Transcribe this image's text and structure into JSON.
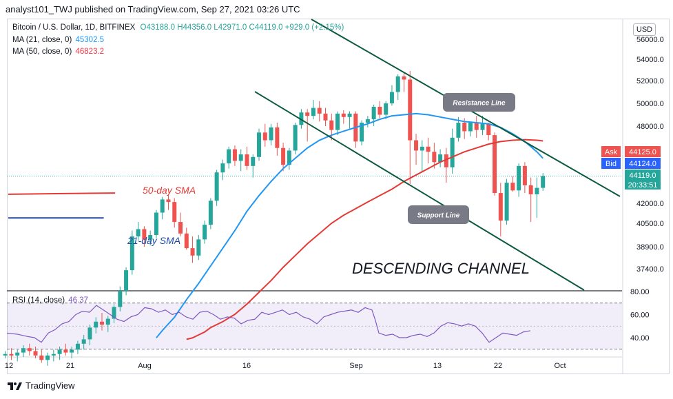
{
  "header": {
    "text": "analyst101_TWJ published on TradingView.com, Sep 27, 2021 03:26 UTC"
  },
  "legend": {
    "symbol": "Bitcoin / U.S. Dollar, 1D, BITFINEX",
    "ohlc": "O43188.0  H44356.0  L42971.0  C44119.0  +929.0 (+2.15%)",
    "ma21_label": "MA (21, close, 0)",
    "ma21_value": "45302.5",
    "ma50_label": "MA (50, close, 0)",
    "ma50_value": "46823.2",
    "rsi_label": "RSI (14, close)",
    "rsi_value": "46.37"
  },
  "currency": "USD",
  "footer": {
    "brand": "TradingView"
  },
  "chart_data": {
    "type": "candlestick",
    "price_axis_ticks": [
      "56000.0",
      "54000.0",
      "52000.0",
      "50000.0",
      "48000.0",
      "42000.0",
      "40500.0",
      "38900.0",
      "37400.0"
    ],
    "price_axis_values": [
      56000,
      54000,
      52000,
      50000,
      48000,
      42000,
      40500,
      38900,
      37400
    ],
    "x_tick_labels": [
      "12",
      "21",
      "Aug",
      "16",
      "Sep",
      "13",
      "22",
      "Oct"
    ],
    "rsi_axis_ticks": [
      "80.00",
      "60.00",
      "40.00"
    ],
    "rsi_axis_values": [
      80,
      60,
      40
    ],
    "price_labels": [
      {
        "name": "Ask",
        "value": "44125.0",
        "color": "#ef5350"
      },
      {
        "name": "Bid",
        "value": "44124.0",
        "color": "#2962ff"
      },
      {
        "name": "Last",
        "value": "44119.0",
        "countdown": "20:33:51",
        "color": "#26a69a"
      }
    ],
    "annotations": {
      "resistance": "Resistance Line",
      "support": "Support Line",
      "title": "DESCENDING CHANNEL",
      "ma50": "50-day SMA",
      "ma21": "21-day SMA"
    },
    "candles": [
      [
        31500,
        31800,
        31300,
        31600
      ],
      [
        31600,
        32000,
        31200,
        31500
      ],
      [
        31500,
        31900,
        31100,
        31700
      ],
      [
        31700,
        32200,
        31400,
        32000
      ],
      [
        32000,
        32300,
        31500,
        31800
      ],
      [
        31800,
        32100,
        31300,
        31500
      ],
      [
        31500,
        31900,
        31000,
        31200
      ],
      [
        31200,
        31700,
        30800,
        31500
      ],
      [
        31500,
        31900,
        31100,
        31600
      ],
      [
        31600,
        32100,
        31200,
        31900
      ],
      [
        31900,
        32300,
        31500,
        31700
      ],
      [
        31700,
        32100,
        31300,
        31900
      ],
      [
        31900,
        32500,
        31600,
        32300
      ],
      [
        32300,
        32900,
        31900,
        32600
      ],
      [
        32600,
        33600,
        32200,
        33400
      ],
      [
        33400,
        34100,
        33000,
        33800
      ],
      [
        33800,
        34400,
        33200,
        33600
      ],
      [
        33600,
        34200,
        33100,
        34000
      ],
      [
        34000,
        35000,
        33700,
        34800
      ],
      [
        34800,
        36200,
        34500,
        35900
      ],
      [
        35900,
        37500,
        35600,
        37300
      ],
      [
        37300,
        40000,
        37000,
        39600
      ],
      [
        39600,
        40600,
        39300,
        40100
      ],
      [
        40100,
        40300,
        38900,
        39400
      ],
      [
        39400,
        40000,
        39000,
        39700
      ],
      [
        39700,
        41500,
        39500,
        41300
      ],
      [
        41300,
        42500,
        40800,
        42300
      ],
      [
        42300,
        42700,
        41500,
        42100
      ],
      [
        42100,
        42400,
        40200,
        40600
      ],
      [
        40600,
        41300,
        39600,
        39800
      ],
      [
        39800,
        40200,
        38700,
        38800
      ],
      [
        38800,
        39600,
        37800,
        38300
      ],
      [
        38300,
        39700,
        38000,
        39400
      ],
      [
        39400,
        40700,
        39100,
        40400
      ],
      [
        40400,
        42400,
        40100,
        42200
      ],
      [
        42200,
        44600,
        41800,
        44400
      ],
      [
        44400,
        45400,
        43800,
        45100
      ],
      [
        45100,
        46400,
        44700,
        46200
      ],
      [
        46200,
        46500,
        44900,
        45300
      ],
      [
        45300,
        46200,
        44500,
        45800
      ],
      [
        45800,
        46400,
        44600,
        44900
      ],
      [
        44900,
        45800,
        44000,
        45600
      ],
      [
        45600,
        47800,
        45300,
        47500
      ],
      [
        47500,
        48200,
        46400,
        46900
      ],
      [
        46900,
        48200,
        46500,
        47900
      ],
      [
        47900,
        48300,
        45700,
        46300
      ],
      [
        46300,
        46700,
        44500,
        45000
      ],
      [
        45000,
        46300,
        44600,
        46100
      ],
      [
        46100,
        48300,
        45800,
        48100
      ],
      [
        48100,
        49500,
        47800,
        49200
      ],
      [
        49200,
        49500,
        46800,
        48900
      ],
      [
        48900,
        50300,
        48600,
        49600
      ],
      [
        49600,
        50200,
        48400,
        49100
      ],
      [
        49100,
        49600,
        48000,
        48500
      ],
      [
        48500,
        49100,
        46900,
        47700
      ],
      [
        47700,
        49300,
        47300,
        49100
      ],
      [
        49100,
        49400,
        48200,
        48800
      ],
      [
        48800,
        49300,
        47800,
        49100
      ],
      [
        49100,
        49300,
        46300,
        46800
      ],
      [
        46800,
        48500,
        46500,
        48300
      ],
      [
        48300,
        48900,
        47900,
        48600
      ],
      [
        48600,
        49900,
        48000,
        49700
      ],
      [
        49700,
        50200,
        48700,
        49000
      ],
      [
        49000,
        50200,
        48600,
        50000
      ],
      [
        50000,
        51600,
        49800,
        51000
      ],
      [
        51000,
        52600,
        50300,
        52400
      ],
      [
        52400,
        52800,
        51000,
        52100
      ],
      [
        52100,
        52900,
        43500,
        46900
      ],
      [
        46900,
        47400,
        45000,
        46100
      ],
      [
        46100,
        46900,
        44400,
        46400
      ],
      [
        46400,
        47100,
        45100,
        46000
      ],
      [
        46000,
        46700,
        44700,
        45200
      ],
      [
        45200,
        46200,
        44800,
        45800
      ],
      [
        45800,
        46300,
        43600,
        44800
      ],
      [
        44800,
        47800,
        44300,
        47100
      ],
      [
        47100,
        48800,
        46800,
        48300
      ],
      [
        48300,
        48700,
        47000,
        47600
      ],
      [
        47600,
        48400,
        47200,
        48300
      ],
      [
        48300,
        48900,
        47100,
        47700
      ],
      [
        47700,
        48900,
        47300,
        48200
      ],
      [
        48200,
        48300,
        46900,
        47300
      ],
      [
        47300,
        47500,
        42600,
        42800
      ],
      [
        42800,
        43600,
        39600,
        40700
      ],
      [
        40700,
        43900,
        40400,
        43600
      ],
      [
        43600,
        44100,
        42900,
        43000
      ],
      [
        43000,
        45100,
        42500,
        44900
      ],
      [
        44900,
        45200,
        42800,
        43400
      ],
      [
        43400,
        44000,
        40600,
        42700
      ],
      [
        42700,
        44000,
        40900,
        43200
      ],
      [
        43200,
        44356,
        42971,
        44119
      ]
    ],
    "ma50": [
      [
        30,
        32600
      ],
      [
        31,
        32700
      ],
      [
        32,
        32900
      ],
      [
        33,
        33100
      ],
      [
        34,
        33400
      ],
      [
        36,
        33800
      ],
      [
        38,
        34300
      ],
      [
        40,
        35000
      ],
      [
        42,
        35800
      ],
      [
        44,
        36600
      ],
      [
        46,
        37500
      ],
      [
        48,
        38300
      ],
      [
        50,
        39100
      ],
      [
        52,
        39800
      ],
      [
        54,
        40500
      ],
      [
        56,
        41100
      ],
      [
        58,
        41600
      ],
      [
        60,
        42100
      ],
      [
        62,
        42600
      ],
      [
        64,
        43100
      ],
      [
        66,
        43700
      ],
      [
        68,
        44200
      ],
      [
        70,
        44700
      ],
      [
        72,
        45200
      ],
      [
        74,
        45600
      ],
      [
        76,
        46000
      ],
      [
        78,
        46300
      ],
      [
        80,
        46600
      ],
      [
        82,
        46800
      ],
      [
        84,
        46900
      ],
      [
        86,
        46950
      ],
      [
        88,
        46900
      ],
      [
        89,
        46850
      ]
    ],
    "ma21": [
      [
        25,
        32700
      ],
      [
        26,
        33200
      ],
      [
        28,
        34100
      ],
      [
        30,
        35300
      ],
      [
        32,
        36400
      ],
      [
        34,
        37600
      ],
      [
        36,
        38800
      ],
      [
        38,
        40000
      ],
      [
        40,
        41400
      ],
      [
        42,
        42600
      ],
      [
        44,
        43700
      ],
      [
        46,
        44700
      ],
      [
        48,
        45500
      ],
      [
        50,
        46300
      ],
      [
        52,
        46900
      ],
      [
        54,
        47300
      ],
      [
        56,
        47600
      ],
      [
        58,
        47900
      ],
      [
        60,
        48200
      ],
      [
        62,
        48600
      ],
      [
        64,
        48900
      ],
      [
        66,
        49000
      ],
      [
        68,
        49100
      ],
      [
        70,
        49000
      ],
      [
        72,
        48800
      ],
      [
        74,
        48600
      ],
      [
        76,
        48400
      ],
      [
        78,
        48300
      ],
      [
        80,
        48200
      ],
      [
        82,
        47900
      ],
      [
        84,
        47400
      ],
      [
        86,
        46800
      ],
      [
        88,
        46000
      ],
      [
        89,
        45500
      ]
    ],
    "ma50_prior": [
      [
        0,
        42700
      ],
      [
        15,
        42750
      ],
      [
        33,
        42800
      ]
    ],
    "ma21_prior": [
      [
        0,
        40900
      ],
      [
        33,
        40900
      ]
    ],
    "rsi": [
      [
        0,
        44
      ],
      [
        3,
        43
      ],
      [
        6,
        41
      ],
      [
        8,
        40
      ],
      [
        10,
        36
      ],
      [
        12,
        44
      ],
      [
        14,
        47
      ],
      [
        16,
        52
      ],
      [
        18,
        54
      ],
      [
        20,
        60
      ],
      [
        22,
        63
      ],
      [
        24,
        62
      ],
      [
        26,
        68
      ],
      [
        28,
        64
      ],
      [
        30,
        60
      ],
      [
        32,
        56
      ],
      [
        34,
        54
      ],
      [
        36,
        58
      ],
      [
        38,
        60
      ],
      [
        40,
        66
      ],
      [
        42,
        65
      ],
      [
        44,
        62
      ],
      [
        46,
        64
      ],
      [
        48,
        60
      ],
      [
        50,
        62
      ],
      [
        52,
        58
      ],
      [
        54,
        56
      ],
      [
        56,
        62
      ],
      [
        58,
        63
      ],
      [
        60,
        60
      ],
      [
        62,
        56
      ],
      [
        64,
        58
      ],
      [
        66,
        57
      ],
      [
        68,
        52
      ],
      [
        70,
        55
      ],
      [
        72,
        56
      ],
      [
        74,
        62
      ],
      [
        76,
        60
      ],
      [
        78,
        62
      ],
      [
        80,
        64
      ],
      [
        82,
        60
      ],
      [
        84,
        62
      ],
      [
        86,
        58
      ],
      [
        88,
        56
      ],
      [
        90,
        52
      ],
      [
        92,
        58
      ],
      [
        94,
        60
      ],
      [
        96,
        62
      ],
      [
        98,
        63
      ],
      [
        100,
        64
      ],
      [
        102,
        62
      ],
      [
        104,
        66
      ],
      [
        106,
        64
      ],
      [
        107,
        55
      ],
      [
        108,
        44
      ],
      [
        110,
        42
      ],
      [
        112,
        43
      ],
      [
        114,
        40
      ],
      [
        116,
        40
      ],
      [
        118,
        42
      ],
      [
        120,
        43
      ],
      [
        122,
        41
      ],
      [
        124,
        44
      ],
      [
        126,
        50
      ],
      [
        128,
        53
      ],
      [
        130,
        52
      ],
      [
        132,
        50
      ],
      [
        134,
        52
      ],
      [
        136,
        50
      ],
      [
        138,
        44
      ],
      [
        140,
        36
      ],
      [
        142,
        40
      ],
      [
        144,
        44
      ],
      [
        146,
        43
      ],
      [
        148,
        42
      ],
      [
        150,
        45
      ],
      [
        152,
        46
      ]
    ],
    "rsi_bands": [
      70,
      30
    ]
  }
}
